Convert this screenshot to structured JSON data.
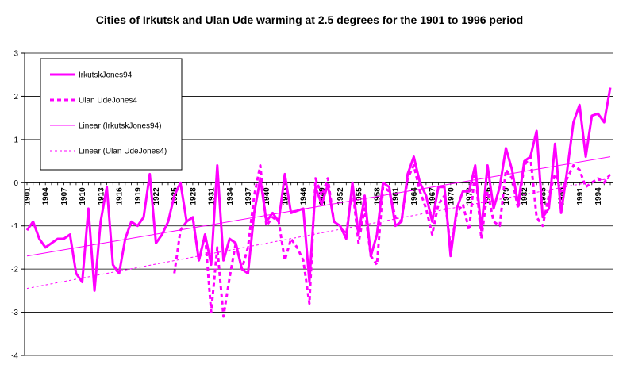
{
  "chart_data": {
    "type": "line",
    "title": "Cities of Irkutsk and Ulan Ude warming at 2.5 degrees for the 1901 to 1996 period",
    "xlabel": "",
    "ylabel": "",
    "ylim": [
      -4,
      3
    ],
    "yticks": [
      3,
      2,
      1,
      0,
      -1,
      -2,
      -3,
      -4
    ],
    "xlim": [
      1901,
      1996
    ],
    "xtick_labels": [
      "1901",
      "1904",
      "1907",
      "1910",
      "1913",
      "1916",
      "1919",
      "1922",
      "1925",
      "1928",
      "1931",
      "1934",
      "1937",
      "1940",
      "1943",
      "1946",
      "1949",
      "1952",
      "1955",
      "1958",
      "1961",
      "1964",
      "1967",
      "1970",
      "1973",
      "1976",
      "1979",
      "1982",
      "1985",
      "1988",
      "1991",
      "1994"
    ],
    "grid": "horizontal",
    "legend": "top-left",
    "series": [
      {
        "name": "IrkutskJones94",
        "color": "#ff00ff",
        "style": "solid-thick",
        "x": [
          1901,
          1902,
          1903,
          1904,
          1905,
          1906,
          1907,
          1908,
          1909,
          1910,
          1911,
          1912,
          1913,
          1914,
          1915,
          1916,
          1917,
          1918,
          1919,
          1920,
          1921,
          1922,
          1923,
          1924,
          1925,
          1926,
          1927,
          1928,
          1929,
          1930,
          1931,
          1932,
          1933,
          1934,
          1935,
          1936,
          1937,
          1938,
          1939,
          1940,
          1941,
          1942,
          1943,
          1944,
          1945,
          1946,
          1947,
          1948,
          1949,
          1950,
          1951,
          1952,
          1953,
          1954,
          1955,
          1956,
          1957,
          1958,
          1959,
          1960,
          1961,
          1962,
          1963,
          1964,
          1965,
          1966,
          1967,
          1968,
          1969,
          1970,
          1971,
          1972,
          1973,
          1974,
          1975,
          1976,
          1977,
          1978,
          1979,
          1980,
          1981,
          1982,
          1983,
          1984,
          1985,
          1986,
          1987,
          1988,
          1989,
          1990,
          1991,
          1992,
          1993,
          1994,
          1995,
          1996
        ],
        "values": [
          -1.1,
          -0.9,
          -1.3,
          -1.5,
          -1.4,
          -1.3,
          -1.3,
          -1.2,
          -2.1,
          -2.3,
          -0.6,
          -2.5,
          -0.9,
          -0.1,
          -1.9,
          -2.1,
          -1.3,
          -0.9,
          -1.0,
          -0.8,
          0.2,
          -1.4,
          -1.2,
          -0.9,
          -0.3,
          0.0,
          -0.9,
          -0.8,
          -1.8,
          -1.2,
          -1.9,
          0.4,
          -1.8,
          -1.3,
          -1.4,
          -2.0,
          -2.1,
          -0.7,
          0.1,
          -0.9,
          -0.7,
          -0.9,
          0.2,
          -0.7,
          -0.65,
          -0.6,
          -2.3,
          -0.1,
          -0.5,
          -0.05,
          -0.9,
          -1.0,
          -1.3,
          0.0,
          -1.2,
          -0.3,
          -1.7,
          -1.2,
          0.0,
          -0.1,
          -1.0,
          -0.9,
          0.2,
          0.6,
          0.0,
          -0.3,
          -0.9,
          -0.1,
          -0.1,
          -1.7,
          -0.6,
          -0.2,
          -0.2,
          0.4,
          -1.1,
          0.4,
          -0.6,
          -0.1,
          0.8,
          0.3,
          -0.5,
          0.5,
          0.6,
          1.2,
          -0.8,
          -0.6,
          0.9,
          -0.7,
          0.3,
          1.4,
          1.8,
          0.6,
          1.55,
          1.6,
          1.4,
          2.2
        ]
      },
      {
        "name": "Ulan UdeJones4",
        "color": "#ff00ff",
        "style": "dashed-thick",
        "x": [
          1925,
          1926,
          1927,
          1928,
          1929,
          1930,
          1931,
          1932,
          1933,
          1934,
          1935,
          1936,
          1937,
          1938,
          1939,
          1940,
          1941,
          1942,
          1943,
          1944,
          1945,
          1946,
          1947,
          1948,
          1949,
          1950,
          1951,
          1952,
          1953,
          1954,
          1955,
          1956,
          1957,
          1958,
          1959,
          1960,
          1961,
          1962,
          1963,
          1964,
          1965,
          1966,
          1967,
          1968,
          1969,
          1970,
          1971,
          1972,
          1973,
          1974,
          1975,
          1976,
          1977,
          1978,
          1979,
          1980,
          1981,
          1982,
          1983,
          1984,
          1985,
          1986,
          1987,
          1988,
          1989,
          1990,
          1991,
          1992,
          1993,
          1994,
          1995,
          1996
        ],
        "values": [
          -2.1,
          -1.1,
          -0.9,
          -0.8,
          -1.8,
          -1.2,
          -3.0,
          -1.5,
          -3.1,
          -2.2,
          -1.4,
          -2.0,
          -1.5,
          -0.3,
          0.4,
          -1.0,
          -0.8,
          -0.9,
          -1.8,
          -1.3,
          -1.5,
          -1.8,
          -2.8,
          0.1,
          -0.3,
          0.1,
          -0.9,
          -1.0,
          -1.2,
          -0.1,
          -1.4,
          -0.6,
          -1.7,
          -1.9,
          -0.1,
          -0.2,
          -0.8,
          -0.9,
          0.1,
          0.4,
          -0.2,
          -0.6,
          -1.2,
          -0.5,
          -0.3,
          -1.5,
          -0.7,
          -0.5,
          -1.1,
          0.3,
          -1.3,
          -0.2,
          -0.9,
          -1.0,
          0.3,
          0.1,
          -0.6,
          0.4,
          0.6,
          -0.8,
          -1.0,
          -0.3,
          0.2,
          -0.2,
          0.1,
          0.4,
          0.3,
          -0.1,
          0.0,
          0.1,
          0.0,
          0.2
        ]
      },
      {
        "name": "Linear (IrkutskJones94)",
        "color": "#ff00ff",
        "style": "solid-thin",
        "x": [
          1901,
          1996
        ],
        "values": [
          -1.7,
          0.6
        ]
      },
      {
        "name": "Linear (Ulan UdeJones4)",
        "color": "#ff00ff",
        "style": "dashed-thin",
        "x": [
          1901,
          1996
        ],
        "values": [
          -2.45,
          0.1
        ]
      }
    ]
  }
}
